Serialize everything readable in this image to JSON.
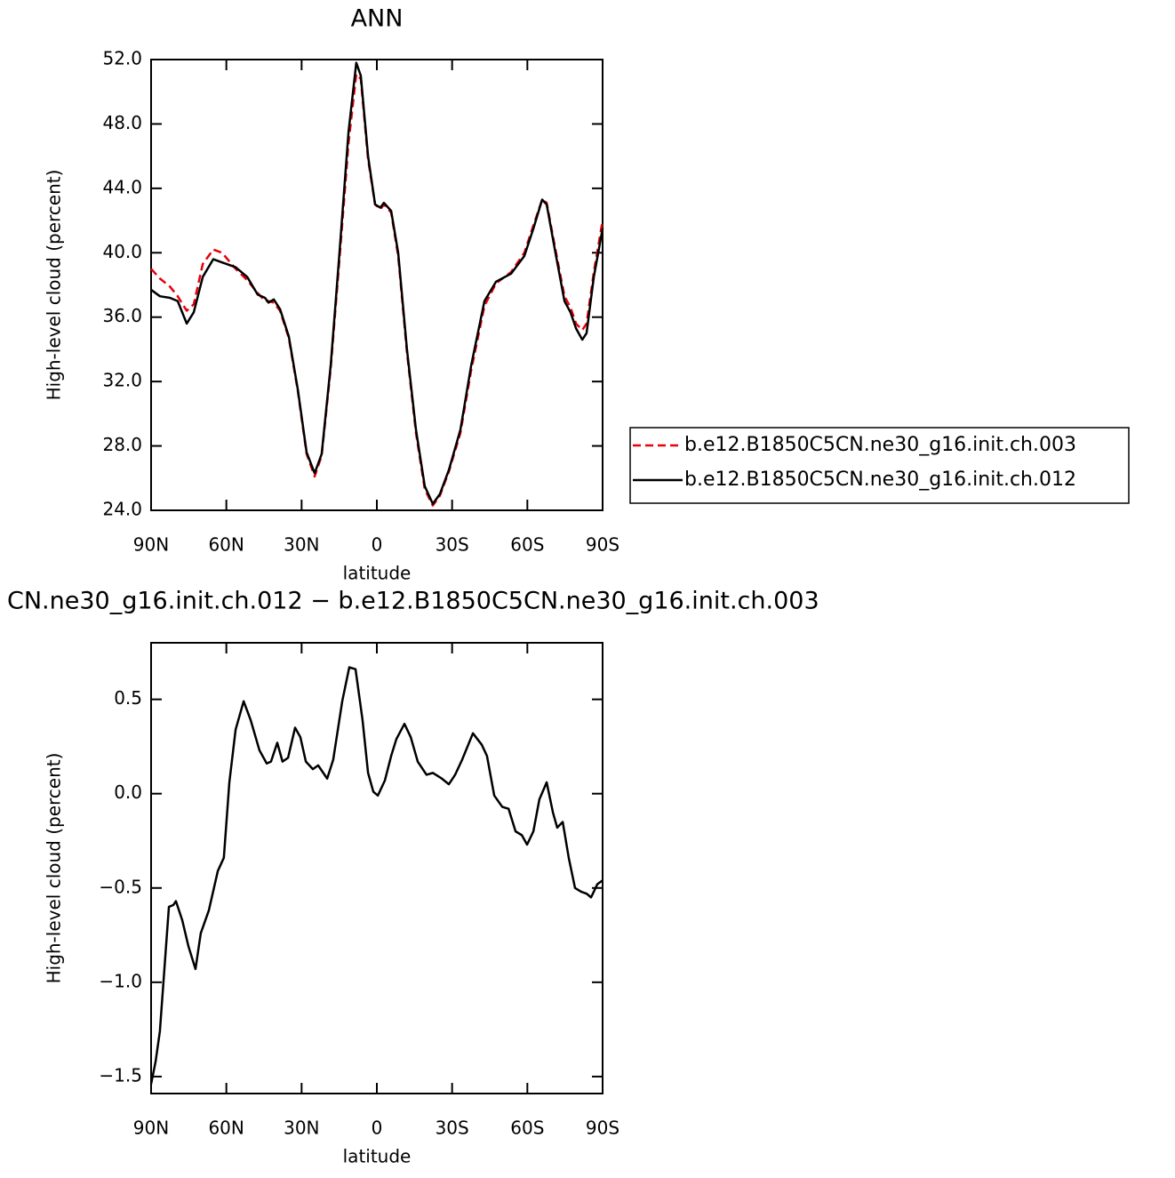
{
  "chart_data": [
    {
      "type": "line",
      "title": "ANN",
      "x_label": "latitude",
      "y_label": "High-level cloud (percent)",
      "xlim": [
        90,
        -90
      ],
      "xticks": [
        {
          "value": 90,
          "label": "90N"
        },
        {
          "value": 60,
          "label": "60N"
        },
        {
          "value": 30,
          "label": "30N"
        },
        0,
        {
          "value": -30,
          "label": "30S"
        },
        {
          "value": -60,
          "label": "60S"
        },
        {
          "value": -90,
          "label": "90S"
        }
      ],
      "ylim": [
        24,
        52
      ],
      "yticks": [
        {
          "value": 24,
          "label": "24.0"
        },
        {
          "value": 28,
          "label": "28.0"
        },
        {
          "value": 32,
          "label": "32.0"
        },
        {
          "value": 36,
          "label": "36.0"
        },
        {
          "value": 40,
          "label": "40.0"
        },
        {
          "value": 44,
          "label": "44.0"
        },
        {
          "value": 48,
          "label": "48.0"
        },
        {
          "value": 52,
          "label": "52.0"
        }
      ],
      "grid": false,
      "legend": "right",
      "x": [
        90,
        86.5,
        82.5,
        79.4,
        75.8,
        73,
        69.4,
        65.2,
        61.7,
        56.3,
        51.7,
        47.5,
        44.6,
        43.2,
        41.1,
        38.6,
        35.1,
        31.5,
        28,
        24.8,
        22,
        18.4,
        14.9,
        11.3,
        8.2,
        6.4,
        3.5,
        0.7,
        -1.4,
        -2.8,
        -5.7,
        -8.5,
        -12,
        -15.6,
        -19.1,
        -22.3,
        -25.1,
        -28.7,
        -33.3,
        -37.6,
        -42.9,
        -47.5,
        -53.5,
        -58.8,
        -62.4,
        -65.9,
        -67.7,
        -71.2,
        -74.8,
        -77.2,
        -79.4,
        -81.9,
        -83.6,
        -86.5,
        -90
      ],
      "series": [
        {
          "name": "b.e12.B1850C5CN.ne30_g16.init.ch.003",
          "color": "#e8000b",
          "linestyle": "dashed",
          "values": [
            39.0,
            38.4,
            37.9,
            37.3,
            36.4,
            36.8,
            39.3,
            40.2,
            40.0,
            39.0,
            38.3,
            37.5,
            37.0,
            37.0,
            36.9,
            36.4,
            34.7,
            31.4,
            27.5,
            26.1,
            27.4,
            32.8,
            39.6,
            46.8,
            51.1,
            50.8,
            45.8,
            43.0,
            42.7,
            43.0,
            42.5,
            39.8,
            33.8,
            28.8,
            25.3,
            24.3,
            24.9,
            26.4,
            28.8,
            32.7,
            36.7,
            38.1,
            38.8,
            40.0,
            41.7,
            43.3,
            43.1,
            40.2,
            37.3,
            36.6,
            35.6,
            35.2,
            35.6,
            38.8,
            42.0
          ]
        },
        {
          "name": "b.e12.B1850C5CN.ne30_g16.init.ch.012",
          "color": "#000000",
          "linestyle": "solid",
          "values": [
            37.7,
            37.3,
            37.2,
            37.0,
            35.6,
            36.3,
            38.5,
            39.6,
            39.4,
            39.1,
            38.5,
            37.4,
            37.2,
            36.9,
            37.1,
            36.5,
            34.8,
            31.5,
            27.6,
            26.3,
            27.5,
            33.0,
            40.0,
            47.5,
            51.8,
            51.0,
            46.0,
            43.0,
            42.8,
            43.1,
            42.6,
            40.0,
            34.0,
            29.0,
            25.5,
            24.4,
            25.0,
            26.5,
            29.0,
            33.0,
            37.0,
            38.2,
            38.7,
            39.8,
            41.5,
            43.3,
            43.0,
            40.0,
            37.0,
            36.3,
            35.3,
            34.6,
            35.0,
            38.5,
            41.5
          ]
        }
      ]
    },
    {
      "type": "line",
      "title": "CN.ne30_g16.init.ch.012 − b.e12.B1850C5CN.ne30_g16.init.ch.003",
      "x_label": "latitude",
      "y_label": "High-level cloud (percent)",
      "xlim": [
        90,
        -90
      ],
      "xticks": [
        {
          "value": 90,
          "label": "90N"
        },
        {
          "value": 60,
          "label": "60N"
        },
        {
          "value": 30,
          "label": "30N"
        },
        0,
        {
          "value": -30,
          "label": "30S"
        },
        {
          "value": -60,
          "label": "60S"
        },
        {
          "value": -90,
          "label": "90S"
        }
      ],
      "ylim": [
        -1.59,
        0.8
      ],
      "yticks": [
        {
          "value": -1.5,
          "label": "−1.5"
        },
        {
          "value": -1.0,
          "label": "−1.0"
        },
        {
          "value": -0.5,
          "label": "−0.5"
        },
        {
          "value": 0,
          "label": "0.0"
        },
        0.5
      ],
      "grid": false,
      "x": [
        90,
        88.2,
        86.5,
        84.7,
        82.9,
        81.1,
        80.1,
        77.6,
        75.1,
        72.3,
        70.2,
        67,
        63.4,
        61,
        58.8,
        56.3,
        53.1,
        50.3,
        46.8,
        43.9,
        42.2,
        39.7,
        37.6,
        35.4,
        32.6,
        30.5,
        28.3,
        25.5,
        23.4,
        19.8,
        17.4,
        13.8,
        11,
        8.5,
        5.7,
        3.5,
        1.4,
        -0.4,
        -3.2,
        -5.7,
        -7.8,
        -11,
        -13.5,
        -16.3,
        -19.8,
        -22.3,
        -25.9,
        -28.7,
        -31.2,
        -34,
        -38.3,
        -41.8,
        -43.9,
        -46.8,
        -50,
        -52.5,
        -55.3,
        -57.8,
        -59.9,
        -62.4,
        -64.8,
        -67.7,
        -70.2,
        -71.9,
        -74.1,
        -76.5,
        -79,
        -81.5,
        -83.6,
        -85.4,
        -87.9,
        -90
      ],
      "series": [
        {
          "color": "#000000",
          "linestyle": "solid",
          "values": [
            -1.54,
            -1.42,
            -1.26,
            -0.93,
            -0.6,
            -0.59,
            -0.57,
            -0.67,
            -0.81,
            -0.93,
            -0.74,
            -0.62,
            -0.41,
            -0.34,
            0.06,
            0.34,
            0.49,
            0.39,
            0.23,
            0.16,
            0.17,
            0.27,
            0.17,
            0.19,
            0.35,
            0.3,
            0.17,
            0.13,
            0.15,
            0.08,
            0.18,
            0.49,
            0.67,
            0.66,
            0.39,
            0.11,
            0.01,
            -0.01,
            0.07,
            0.2,
            0.29,
            0.37,
            0.3,
            0.17,
            0.1,
            0.11,
            0.08,
            0.05,
            0.1,
            0.18,
            0.32,
            0.26,
            0.2,
            -0.01,
            -0.07,
            -0.08,
            -0.2,
            -0.22,
            -0.27,
            -0.2,
            -0.03,
            0.06,
            -0.1,
            -0.18,
            -0.15,
            -0.34,
            -0.5,
            -0.52,
            -0.53,
            -0.55,
            -0.48,
            -0.46
          ]
        }
      ]
    }
  ]
}
